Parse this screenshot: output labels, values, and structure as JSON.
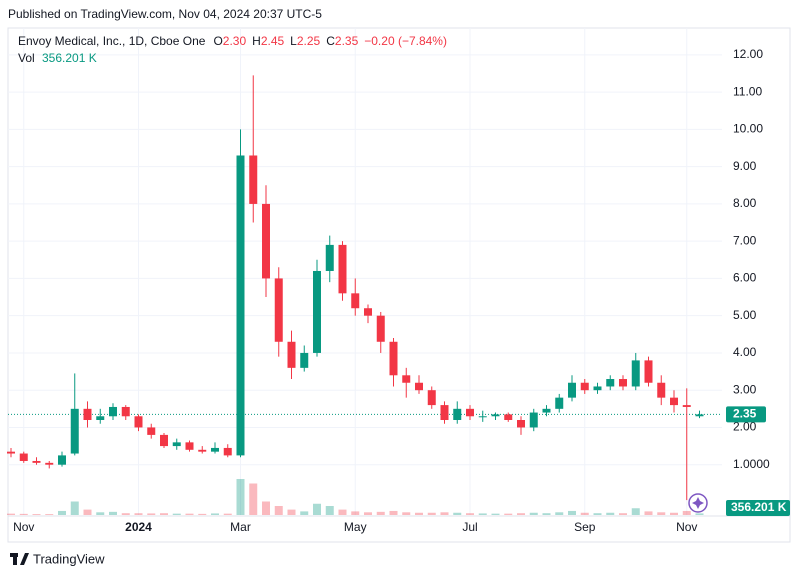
{
  "chart_data": {
    "type": "candlestick",
    "published": "Published on TradingView.com, Nov 04, 2024 20:37 UTC-5",
    "title": "Envoy Medical, Inc., 1D, Cboe One",
    "ohlc_legend": {
      "labels": [
        "O",
        "H",
        "L",
        "C"
      ],
      "values": [
        2.3,
        2.45,
        2.25,
        2.35
      ],
      "value_labels": [
        "2.30",
        "2.45",
        "2.25",
        "2.35"
      ],
      "change": "−0.20 (−7.84%)"
    },
    "volume_legend": {
      "label": "Vol",
      "value": 356.201,
      "value_label": "356.201 K"
    },
    "brand": "TradingView",
    "up_color": "#089981",
    "down_color": "#f23645",
    "grid": true,
    "categories": [
      null,
      "Nov",
      null,
      null,
      null,
      null,
      null,
      null,
      null,
      null,
      "2024",
      null,
      null,
      null,
      null,
      null,
      null,
      null,
      "Mar",
      null,
      null,
      null,
      null,
      null,
      null,
      null,
      null,
      "May",
      null,
      null,
      null,
      null,
      null,
      null,
      null,
      null,
      "Jul",
      null,
      null,
      null,
      null,
      null,
      null,
      null,
      null,
      "Sep",
      null,
      null,
      null,
      null,
      null,
      null,
      null,
      "Nov",
      null
    ],
    "open": [
      1.35,
      1.3,
      1.1,
      1.05,
      1.0,
      1.3,
      2.5,
      2.2,
      2.3,
      2.55,
      2.3,
      2.0,
      1.8,
      1.5,
      1.6,
      1.4,
      1.35,
      1.45,
      1.25,
      9.3,
      8.0,
      6.0,
      4.3,
      3.6,
      4.0,
      6.2,
      6.9,
      5.6,
      5.2,
      5.0,
      4.3,
      3.4,
      3.2,
      3.0,
      2.6,
      2.2,
      2.5,
      2.3,
      2.3,
      2.35,
      2.2,
      2.0,
      2.4,
      2.5,
      2.8,
      3.2,
      3.0,
      3.1,
      3.3,
      3.1,
      3.8,
      3.2,
      2.8,
      2.6,
      2.3
    ],
    "high": [
      1.45,
      1.35,
      1.2,
      1.1,
      1.35,
      3.45,
      2.7,
      2.5,
      2.65,
      2.6,
      2.35,
      2.1,
      1.85,
      1.7,
      1.65,
      1.5,
      1.6,
      1.55,
      10.0,
      11.45,
      8.5,
      6.3,
      4.6,
      4.2,
      6.5,
      7.15,
      7.0,
      6.0,
      5.3,
      5.1,
      4.4,
      3.6,
      3.4,
      3.1,
      2.7,
      2.7,
      2.6,
      2.45,
      2.4,
      2.4,
      2.3,
      2.5,
      2.6,
      2.9,
      3.4,
      3.3,
      3.2,
      3.4,
      3.4,
      4.0,
      3.9,
      3.4,
      3.0,
      3.05,
      2.45
    ],
    "low": [
      1.2,
      1.05,
      1.0,
      0.9,
      0.95,
      1.25,
      2.0,
      2.1,
      2.2,
      2.2,
      1.9,
      1.7,
      1.45,
      1.4,
      1.35,
      1.3,
      1.3,
      1.2,
      1.2,
      7.5,
      5.5,
      3.9,
      3.3,
      3.5,
      3.9,
      5.9,
      5.4,
      5.0,
      4.8,
      4.0,
      3.1,
      2.8,
      2.9,
      2.5,
      2.1,
      2.1,
      2.2,
      2.15,
      2.2,
      2.15,
      1.8,
      1.9,
      2.3,
      2.4,
      2.7,
      2.9,
      2.9,
      3.0,
      3.0,
      3.0,
      3.1,
      2.6,
      2.4,
      0.05,
      2.25
    ],
    "close": [
      1.3,
      1.1,
      1.05,
      1.0,
      1.25,
      2.5,
      2.2,
      2.3,
      2.55,
      2.3,
      2.0,
      1.8,
      1.5,
      1.6,
      1.4,
      1.35,
      1.45,
      1.25,
      9.3,
      8.0,
      6.0,
      4.3,
      3.6,
      4.0,
      6.2,
      6.9,
      5.6,
      5.2,
      5.0,
      4.3,
      3.4,
      3.2,
      3.0,
      2.6,
      2.2,
      2.5,
      2.3,
      2.3,
      2.35,
      2.2,
      2.0,
      2.4,
      2.5,
      2.8,
      3.2,
      3.0,
      3.1,
      3.3,
      3.1,
      3.8,
      3.2,
      2.8,
      2.6,
      2.55,
      2.35
    ],
    "volume": [
      300,
      250,
      200,
      200,
      900,
      3000,
      1200,
      600,
      700,
      400,
      400,
      350,
      400,
      300,
      300,
      250,
      350,
      300,
      8000,
      7000,
      3000,
      2000,
      1200,
      800,
      2500,
      2000,
      1200,
      800,
      600,
      700,
      900,
      600,
      500,
      500,
      600,
      500,
      400,
      350,
      300,
      300,
      400,
      500,
      400,
      600,
      900,
      500,
      400,
      500,
      400,
      1500,
      800,
      600,
      500,
      900,
      356.201
    ],
    "ylim": [
      -0.35,
      12.4
    ],
    "yticks": [
      {
        "value": 1,
        "label": "1.0000"
      },
      {
        "value": 2,
        "label": "2.00"
      },
      {
        "value": 3,
        "label": "3.00"
      },
      {
        "value": 4,
        "label": "4.00"
      },
      {
        "value": 5,
        "label": "5.00"
      },
      {
        "value": 6,
        "label": "6.00"
      },
      {
        "value": 7,
        "label": "7.00"
      },
      {
        "value": 8,
        "label": "8.00"
      },
      {
        "value": 9,
        "label": "9.00"
      },
      {
        "value": 10,
        "label": "10.00"
      },
      {
        "value": 11,
        "label": "11.00"
      },
      {
        "value": 12,
        "label": "12.00"
      }
    ]
  }
}
